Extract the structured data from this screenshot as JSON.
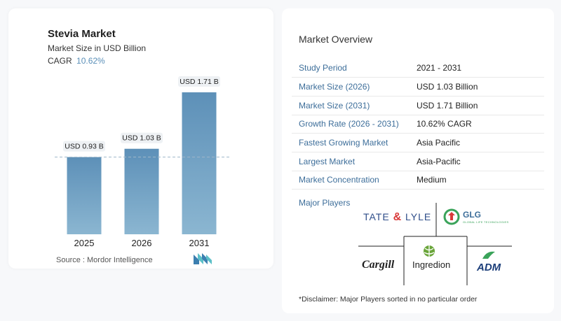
{
  "header": {
    "title": "Stevia Market",
    "subtitle": "Market Size in USD Billion",
    "cagr_label": "CAGR",
    "cagr_value": "10.62%"
  },
  "chart_data": {
    "type": "bar",
    "categories": [
      "2025",
      "2026",
      "2031"
    ],
    "values": [
      0.93,
      1.03,
      1.71
    ],
    "data_labels": [
      "USD 0.93 B",
      "USD 1.03 B",
      "USD 1.71 B"
    ],
    "title": "Stevia Market",
    "subtitle": "Market Size in USD Billion",
    "grid": false,
    "colors": {
      "bar_top": "#5d90b8",
      "bar_bottom": "#8bb6d1"
    }
  },
  "footer": {
    "source": "Source :  Mordor Intelligence"
  },
  "overview": {
    "title": "Market Overview",
    "rows": [
      {
        "label": "Study Period",
        "value": "2021 - 2031"
      },
      {
        "label": "Market Size (2026)",
        "value": "USD 1.03 Billion"
      },
      {
        "label": "Market Size (2031)",
        "value": "USD 1.71 Billion"
      },
      {
        "label": "Growth Rate (2026 - 2031)",
        "value": "10.62% CAGR"
      },
      {
        "label": "Fastest Growing Market",
        "value": "Asia Pacific"
      },
      {
        "label": "Largest Market",
        "value": "Asia-Pacific"
      },
      {
        "label": "Market Concentration",
        "value": "Medium"
      }
    ]
  },
  "players": {
    "title": "Major Players",
    "logos": {
      "tate_lyle": {
        "left": "TATE",
        "right": "LYLE"
      },
      "glg": {
        "name": "GLG",
        "tagline": "GLOBAL LIFE TECHNOLOGIES"
      },
      "cargill": "Cargill",
      "ingredion": "Ingredion",
      "adm": "ADM"
    },
    "disclaimer": "*Disclaimer: Major Players sorted in no particular order"
  }
}
